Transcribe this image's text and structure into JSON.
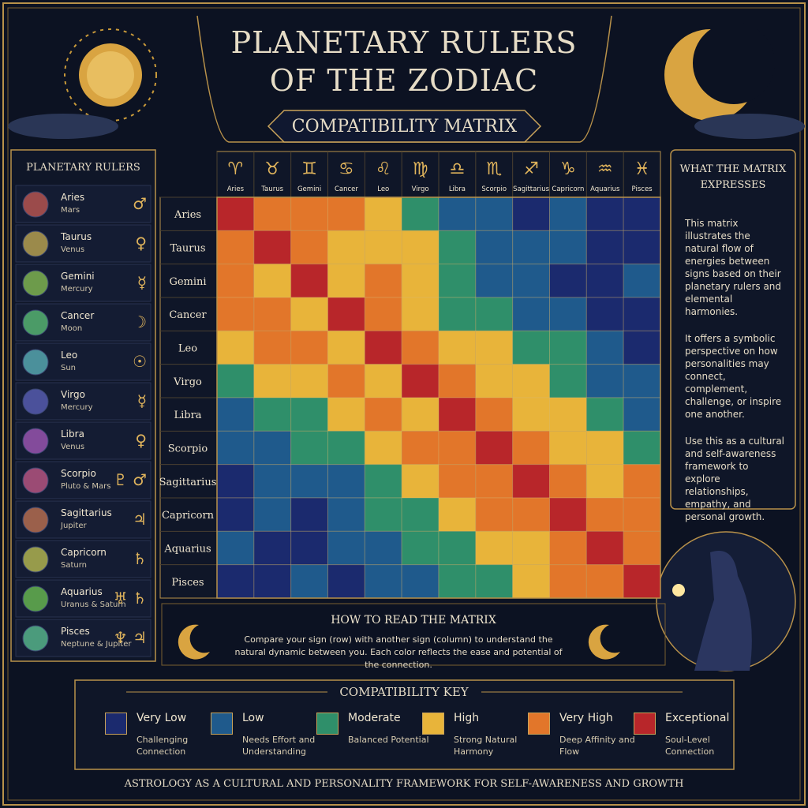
{
  "header": {
    "title_line1": "PLANETARY RULERS",
    "title_line2": "OF THE ZODIAC",
    "subtitle": "COMPATIBILITY MATRIX"
  },
  "rulers": {
    "heading": "PLANETARY RULERS",
    "items": [
      {
        "sign": "Aries",
        "planet": "Mars",
        "symbol": "♂"
      },
      {
        "sign": "Taurus",
        "planet": "Venus",
        "symbol": "♀"
      },
      {
        "sign": "Gemini",
        "planet": "Mercury",
        "symbol": "☿"
      },
      {
        "sign": "Cancer",
        "planet": "Moon",
        "symbol": "☽"
      },
      {
        "sign": "Leo",
        "planet": "Sun",
        "symbol": "☉"
      },
      {
        "sign": "Virgo",
        "planet": "Mercury",
        "symbol": "☿"
      },
      {
        "sign": "Libra",
        "planet": "Venus",
        "symbol": "♀"
      },
      {
        "sign": "Scorpio",
        "planet": "Pluto & Mars",
        "symbol": "♇ ♂"
      },
      {
        "sign": "Sagittarius",
        "planet": "Jupiter",
        "symbol": "♃"
      },
      {
        "sign": "Capricorn",
        "planet": "Saturn",
        "symbol": "♄"
      },
      {
        "sign": "Aquarius",
        "planet": "Uranus & Saturn",
        "symbol": "♅ ♄"
      },
      {
        "sign": "Pisces",
        "planet": "Neptune & Jupiter",
        "symbol": "♆ ♃"
      }
    ]
  },
  "matrix": {
    "columns": [
      {
        "glyph": "♈",
        "label": "Aries"
      },
      {
        "glyph": "♉",
        "label": "Taurus"
      },
      {
        "glyph": "♊",
        "label": "Gemini"
      },
      {
        "glyph": "♋",
        "label": "Cancer"
      },
      {
        "glyph": "♌",
        "label": "Leo"
      },
      {
        "glyph": "♍",
        "label": "Virgo"
      },
      {
        "glyph": "♎",
        "label": "Libra"
      },
      {
        "glyph": "♏",
        "label": "Scorpio"
      },
      {
        "glyph": "♐",
        "label": "Sagittarius"
      },
      {
        "glyph": "♑",
        "label": "Capricorn"
      },
      {
        "glyph": "♒",
        "label": "Aquarius"
      },
      {
        "glyph": "♓",
        "label": "Pisces"
      }
    ],
    "rows": [
      "Aries",
      "Taurus",
      "Gemini",
      "Cancer",
      "Leo",
      "Virgo",
      "Libra",
      "Scorpio",
      "Sagittarius",
      "Capricorn",
      "Aquarius",
      "Pisces"
    ],
    "levels": [
      [
        5,
        4,
        4,
        4,
        3,
        2,
        1,
        1,
        0,
        1,
        0,
        0
      ],
      [
        4,
        5,
        4,
        3,
        3,
        3,
        2,
        1,
        1,
        1,
        0,
        0
      ],
      [
        4,
        3,
        5,
        3,
        4,
        3,
        2,
        1,
        1,
        0,
        0,
        1
      ],
      [
        4,
        4,
        3,
        5,
        4,
        3,
        2,
        2,
        1,
        1,
        0,
        0
      ],
      [
        3,
        4,
        4,
        3,
        5,
        4,
        3,
        3,
        2,
        2,
        1,
        0
      ],
      [
        2,
        3,
        3,
        4,
        3,
        5,
        4,
        3,
        3,
        2,
        1,
        1
      ],
      [
        1,
        2,
        2,
        3,
        4,
        3,
        5,
        4,
        3,
        3,
        2,
        1
      ],
      [
        1,
        1,
        2,
        2,
        3,
        4,
        4,
        5,
        4,
        3,
        3,
        2
      ],
      [
        0,
        1,
        1,
        1,
        2,
        3,
        4,
        4,
        5,
        4,
        3,
        4
      ],
      [
        0,
        1,
        0,
        1,
        2,
        2,
        3,
        4,
        4,
        5,
        4,
        4
      ],
      [
        1,
        0,
        0,
        1,
        1,
        2,
        2,
        3,
        3,
        4,
        5,
        4
      ],
      [
        0,
        0,
        1,
        0,
        1,
        1,
        2,
        2,
        3,
        4,
        4,
        5
      ]
    ]
  },
  "explanation": {
    "heading": "WHAT THE MATRIX EXPRESSES",
    "paragraphs": [
      "This matrix illustrates the natural flow of energies between signs based on their planetary rulers and elemental harmonies.",
      "It offers a symbolic perspective on how personalities may connect, complement, challenge, or inspire one another.",
      "Use this as a cultural and self-awareness framework to explore relationships, empathy, and personal growth."
    ]
  },
  "how_to_read": {
    "heading": "HOW TO READ THE MATRIX",
    "text": "Compare your sign (row) with another sign (column) to understand the natural dynamic between you. Each color reflects the ease and potential of the connection."
  },
  "key": {
    "heading": "COMPATIBILITY KEY",
    "items": [
      {
        "label": "Very Low",
        "description": "Challenging Connection",
        "color": "#1b2a6e"
      },
      {
        "label": "Low",
        "description": "Needs Effort and Understanding",
        "color": "#1f5a8c"
      },
      {
        "label": "Moderate",
        "description": "Balanced Potential",
        "color": "#2f8f6a"
      },
      {
        "label": "High",
        "description": "Strong Natural Harmony",
        "color": "#e8b43a"
      },
      {
        "label": "Very High",
        "description": "Deep Affinity and Flow",
        "color": "#e2762a"
      },
      {
        "label": "Exceptional",
        "description": "Soul-Level Connection",
        "color": "#b8262a"
      }
    ]
  },
  "footer": "ASTROLOGY AS A CULTURAL AND PERSONALITY FRAMEWORK FOR SELF-AWARENESS AND GROWTH"
}
